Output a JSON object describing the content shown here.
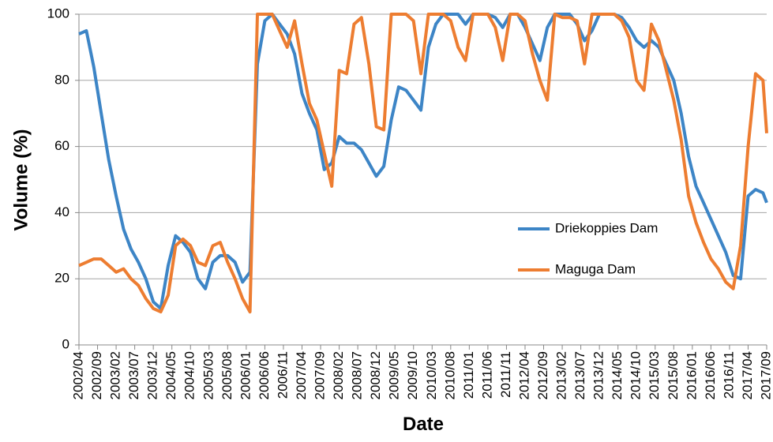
{
  "chart_data": {
    "type": "line",
    "xlabel": "Date",
    "ylabel": "Volume (%)",
    "x": [
      "2002/04",
      "2002/06",
      "2002/08",
      "2002/10",
      "2002/12",
      "2003/02",
      "2003/04",
      "2003/06",
      "2003/08",
      "2003/10",
      "2003/12",
      "2004/02",
      "2004/04",
      "2004/06",
      "2004/08",
      "2004/10",
      "2004/12",
      "2005/02",
      "2005/04",
      "2005/06",
      "2005/08",
      "2005/10",
      "2005/12",
      "2006/02",
      "2006/04",
      "2006/06",
      "2006/08",
      "2006/10",
      "2006/12",
      "2007/02",
      "2007/04",
      "2007/06",
      "2007/08",
      "2007/10",
      "2007/12",
      "2008/02",
      "2008/04",
      "2008/06",
      "2008/08",
      "2008/10",
      "2008/12",
      "2009/02",
      "2009/04",
      "2009/06",
      "2009/08",
      "2009/10",
      "2009/12",
      "2010/02",
      "2010/04",
      "2010/06",
      "2010/08",
      "2010/10",
      "2010/12",
      "2011/02",
      "2011/04",
      "2011/06",
      "2011/08",
      "2011/10",
      "2011/12",
      "2012/02",
      "2012/04",
      "2012/06",
      "2012/08",
      "2012/10",
      "2012/12",
      "2013/02",
      "2013/04",
      "2013/06",
      "2013/08",
      "2013/10",
      "2013/12",
      "2014/02",
      "2014/04",
      "2014/06",
      "2014/08",
      "2014/10",
      "2014/12",
      "2015/02",
      "2015/04",
      "2015/06",
      "2015/08",
      "2015/10",
      "2015/12",
      "2016/02",
      "2016/04",
      "2016/06",
      "2016/08",
      "2016/10",
      "2016/12",
      "2017/02",
      "2017/04",
      "2017/06",
      "2017/08",
      "2017/09"
    ],
    "series": [
      {
        "name": "Driekoppies Dam",
        "color": "#3d85c6",
        "values": [
          94,
          95,
          84,
          70,
          56,
          45,
          35,
          29,
          25,
          20,
          13,
          11,
          24,
          33,
          31,
          28,
          20,
          17,
          25,
          27,
          27,
          25,
          19,
          22,
          85,
          98,
          100,
          97,
          94,
          88,
          76,
          70,
          65,
          53,
          55,
          63,
          61,
          61,
          59,
          55,
          51,
          54,
          68,
          78,
          77,
          74,
          71,
          90,
          97,
          100,
          100,
          100,
          97,
          100,
          100,
          100,
          99,
          96,
          100,
          100,
          96,
          91,
          86,
          96,
          100,
          100,
          100,
          97,
          92,
          95,
          100,
          100,
          100,
          99,
          96,
          92,
          90,
          92,
          90,
          85,
          80,
          70,
          57,
          48,
          43,
          38,
          33,
          28,
          21,
          20,
          45,
          47,
          46,
          43
        ]
      },
      {
        "name": "Maguga Dam",
        "color": "#ed7d31",
        "values": [
          24,
          25,
          26,
          26,
          24,
          22,
          23,
          20,
          18,
          14,
          11,
          10,
          15,
          30,
          32,
          30,
          25,
          24,
          30,
          31,
          25,
          20,
          14,
          10,
          100,
          100,
          100,
          95,
          90,
          98,
          85,
          73,
          68,
          58,
          48,
          83,
          82,
          97,
          99,
          85,
          66,
          65,
          100,
          100,
          100,
          98,
          82,
          100,
          100,
          100,
          98,
          90,
          86,
          100,
          100,
          100,
          96,
          86,
          100,
          100,
          98,
          88,
          80,
          74,
          100,
          99,
          99,
          98,
          85,
          100,
          100,
          100,
          100,
          98,
          93,
          80,
          77,
          97,
          92,
          83,
          74,
          62,
          45,
          37,
          31,
          26,
          23,
          19,
          17,
          30,
          60,
          82,
          80,
          64
        ]
      }
    ],
    "xlim": [
      "2002/04",
      "2017/09"
    ],
    "xticks": [
      "2002/04",
      "2002/09",
      "2003/02",
      "2003/07",
      "2003/12",
      "2004/05",
      "2004/10",
      "2005/03",
      "2005/08",
      "2006/01",
      "2006/06",
      "2006/11",
      "2007/04",
      "2007/09",
      "2008/02",
      "2008/07",
      "2008/12",
      "2009/05",
      "2009/10",
      "2010/03",
      "2010/08",
      "2011/01",
      "2011/06",
      "2011/11",
      "2012/04",
      "2012/09",
      "2013/02",
      "2013/07",
      "2013/12",
      "2014/05",
      "2014/10",
      "2015/03",
      "2015/08",
      "2016/01",
      "2016/06",
      "2016/11",
      "2017/04",
      "2017/09"
    ],
    "ylim": [
      0,
      100
    ],
    "yticks": [
      0,
      20,
      40,
      60,
      80,
      100
    ],
    "grid": true,
    "legend": "right"
  }
}
